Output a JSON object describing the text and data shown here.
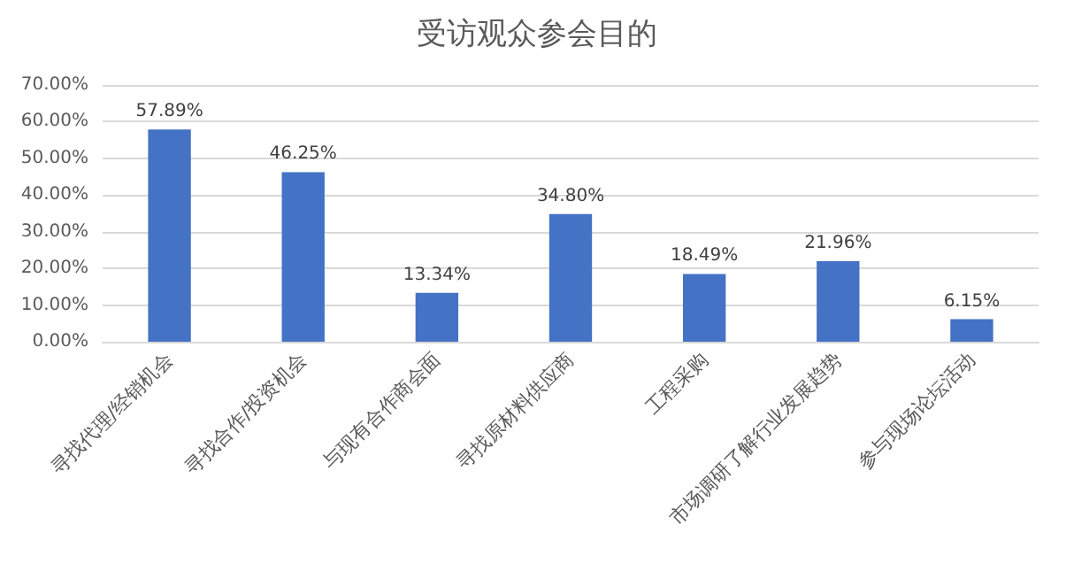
{
  "chart_data": {
    "type": "bar",
    "title": "受访观众参会目的",
    "categories": [
      "寻找代理/经销机会",
      "寻找合作/投资机会",
      "与现有合作商会面",
      "寻找原材料供应商",
      "工程采购",
      "市场调研了解行业发展趋势",
      "参与现场论坛活动"
    ],
    "values": [
      57.89,
      46.25,
      13.34,
      34.8,
      18.49,
      21.96,
      6.15
    ],
    "value_labels": [
      "57.89%",
      "46.25%",
      "13.34%",
      "34.80%",
      "18.49%",
      "21.96%",
      "6.15%"
    ],
    "color": "#4472c4",
    "ylim": [
      0,
      70
    ],
    "yticks": [
      {
        "value": 0,
        "label": "0.00%"
      },
      {
        "value": 10,
        "label": "10.00%"
      },
      {
        "value": 20,
        "label": "20.00%"
      },
      {
        "value": 30,
        "label": "30.00%"
      },
      {
        "value": 40,
        "label": "40.00%"
      },
      {
        "value": 50,
        "label": "50.00%"
      },
      {
        "value": 60,
        "label": "60.00%"
      },
      {
        "value": 70,
        "label": "70.00%"
      }
    ],
    "grid": "y"
  }
}
